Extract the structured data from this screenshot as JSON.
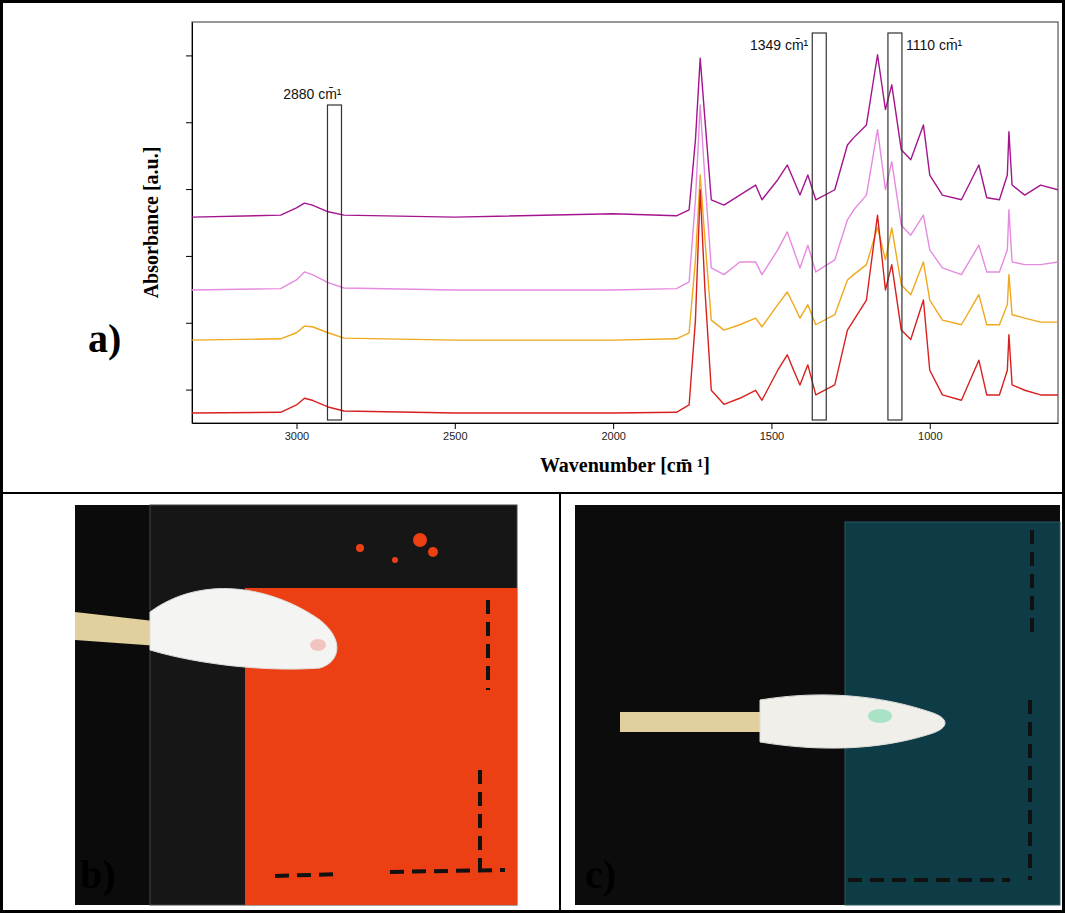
{
  "chart_data": {
    "type": "line",
    "x_label": "Wavenumber [cm̄ ¹]",
    "y_label": "Absorbance [a.u.]",
    "x": [
      3330,
      3050,
      3000,
      2975,
      2950,
      2900,
      2850,
      2500,
      2000,
      1800,
      1760,
      1740,
      1725,
      1710,
      1690,
      1650,
      1600,
      1550,
      1530,
      1480,
      1450,
      1430,
      1410,
      1385,
      1360,
      1300,
      1260,
      1240,
      1200,
      1165,
      1140,
      1120,
      1090,
      1060,
      1020,
      1000,
      960,
      900,
      845,
      820,
      780,
      755,
      750,
      740,
      700,
      650,
      595
    ],
    "series": [
      {
        "color": "#a4148f",
        "values": [
          3.08,
          3.11,
          3.22,
          3.29,
          3.26,
          3.16,
          3.11,
          3.08,
          3.13,
          3.1,
          3.19,
          4.24,
          5.46,
          4.54,
          3.34,
          3.26,
          3.41,
          3.56,
          3.34,
          3.64,
          3.86,
          3.64,
          3.41,
          3.71,
          3.34,
          3.49,
          4.16,
          4.27,
          4.46,
          5.51,
          4.69,
          5.06,
          4.09,
          3.94,
          4.46,
          3.71,
          3.41,
          3.34,
          3.86,
          3.37,
          3.34,
          3.71,
          4.36,
          3.56,
          3.41,
          3.56,
          3.49
        ]
      },
      {
        "color": "#e68ae0",
        "values": [
          1.99,
          2.01,
          2.14,
          2.26,
          2.22,
          2.1,
          2.02,
          1.99,
          1.99,
          2.01,
          2.11,
          3.34,
          4.76,
          3.64,
          2.32,
          2.22,
          2.41,
          2.41,
          2.22,
          2.59,
          2.86,
          2.59,
          2.32,
          2.66,
          2.26,
          2.44,
          3.04,
          3.19,
          3.41,
          4.39,
          3.49,
          3.91,
          2.96,
          2.81,
          3.11,
          2.59,
          2.32,
          2.22,
          2.66,
          2.26,
          2.26,
          2.59,
          3.19,
          2.41,
          2.37,
          2.37,
          2.41
        ]
      },
      {
        "color": "#f0a81c",
        "values": [
          1.24,
          1.26,
          1.35,
          1.45,
          1.44,
          1.35,
          1.27,
          1.24,
          1.24,
          1.26,
          1.35,
          2.44,
          3.71,
          2.74,
          1.54,
          1.39,
          1.47,
          1.57,
          1.44,
          1.77,
          1.96,
          1.77,
          1.57,
          1.77,
          1.47,
          1.62,
          2.14,
          2.22,
          2.37,
          2.93,
          2.44,
          2.92,
          2.07,
          1.92,
          2.41,
          1.84,
          1.54,
          1.47,
          1.92,
          1.47,
          1.47,
          1.77,
          2.22,
          1.62,
          1.57,
          1.51,
          1.51
        ]
      },
      {
        "color": "#d8201e",
        "values": [
          0.15,
          0.16,
          0.27,
          0.37,
          0.34,
          0.24,
          0.18,
          0.15,
          0.15,
          0.16,
          0.27,
          1.54,
          3.49,
          1.99,
          0.49,
          0.28,
          0.37,
          0.49,
          0.34,
          0.79,
          1.02,
          0.79,
          0.57,
          0.87,
          0.42,
          0.57,
          1.39,
          1.54,
          1.84,
          3.11,
          1.99,
          2.37,
          1.39,
          1.25,
          1.84,
          0.79,
          0.42,
          0.34,
          0.94,
          0.42,
          0.42,
          0.79,
          1.32,
          0.57,
          0.49,
          0.42,
          0.42
        ]
      }
    ],
    "xlim": [
      3330,
      595
    ],
    "xticks": [
      3000,
      2500,
      2000,
      1500,
      1000
    ],
    "ylim": [
      0,
      6
    ],
    "yticks": [
      0.5,
      1.5,
      2.5,
      3.5,
      4.5,
      5.5
    ],
    "tick_labels": "x",
    "grid": false,
    "annotations": [
      {
        "text": "2880 cm̄¹",
        "x": 2880
      },
      {
        "text": "1349 cm̄¹",
        "x": 1349
      },
      {
        "text": "1110 cm̄¹",
        "x": 1110
      }
    ]
  },
  "panel_labels": [
    "a)",
    "b)",
    "c)"
  ]
}
